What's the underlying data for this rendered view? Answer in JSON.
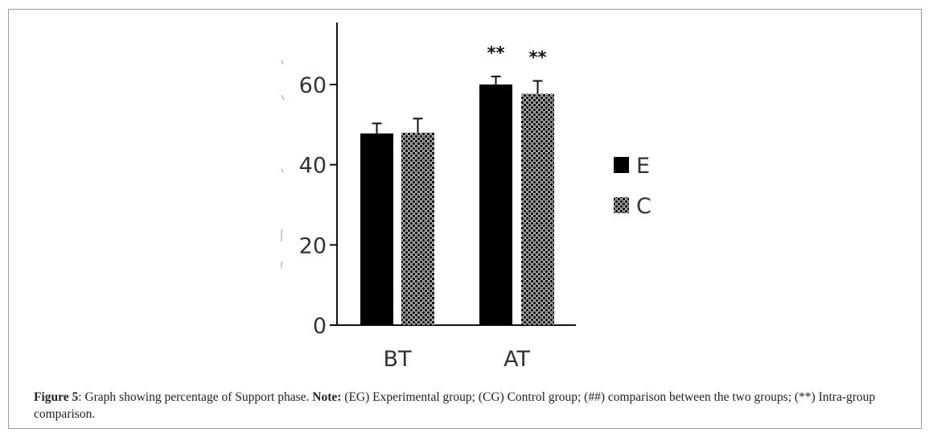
{
  "chart_data": {
    "type": "bar",
    "categories": [
      "BT",
      "AT"
    ],
    "series": [
      {
        "name": "E",
        "pattern": "solid",
        "color": "#000000",
        "values": [
          47.8,
          60.0
        ],
        "errors": [
          2.5,
          2.0
        ]
      },
      {
        "name": "C",
        "pattern": "checkered",
        "color": "#000000",
        "values": [
          48.0,
          57.7
        ],
        "errors": [
          3.5,
          3.2
        ]
      }
    ],
    "yticks": [
      0,
      20,
      40,
      60
    ],
    "ylim": [
      0,
      75
    ],
    "significance": [
      {
        "category": "AT",
        "series": "E",
        "label": "**"
      },
      {
        "category": "AT",
        "series": "C",
        "label": "**"
      }
    ],
    "legend_position": "right"
  },
  "caption": {
    "figure_label": "Figure 5",
    "figure_sep": ":",
    "description": " Graph showing percentage of  Support phase. ",
    "note_label": "Note:",
    "note_text": " (EG) Experimental group; (CG) Control group; (##)  comparison between the two groups; (**) Intra-group comparison."
  }
}
